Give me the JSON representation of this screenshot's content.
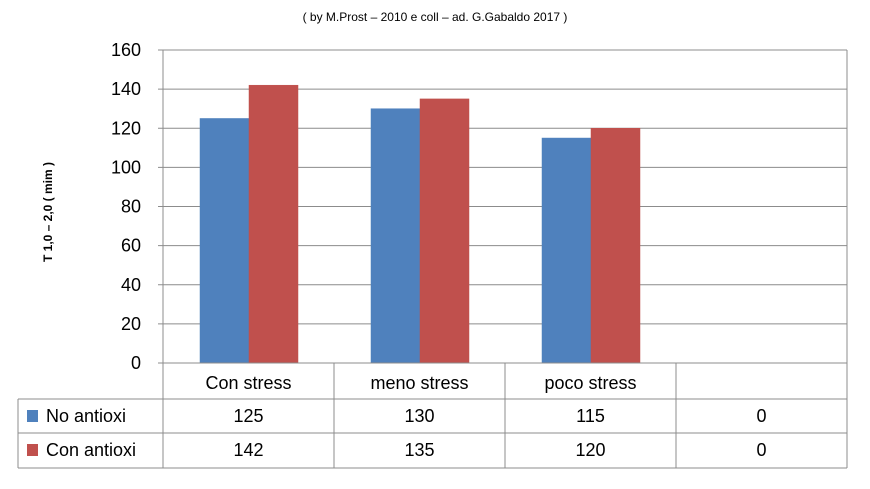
{
  "chart_data": {
    "type": "bar",
    "subtitle": "( by M.Prost – 2010 e coll – ad.  G.Gabaldo 2017 )",
    "ylabel": "T 1,0 – 2,0 ( mim )",
    "xlabel": "",
    "categories": [
      "Con stress",
      "meno stress",
      "poco stress",
      ""
    ],
    "series": [
      {
        "name": "No antioxi",
        "color": "#4F81BD",
        "values": [
          125,
          130,
          115,
          0
        ]
      },
      {
        "name": "Con antioxi",
        "color": "#C0504D",
        "values": [
          142,
          135,
          120,
          0
        ]
      }
    ],
    "ylim": [
      0,
      160
    ],
    "yticks": [
      0,
      20,
      40,
      60,
      80,
      100,
      120,
      140,
      160
    ],
    "grid": true,
    "legend": "data-table"
  }
}
